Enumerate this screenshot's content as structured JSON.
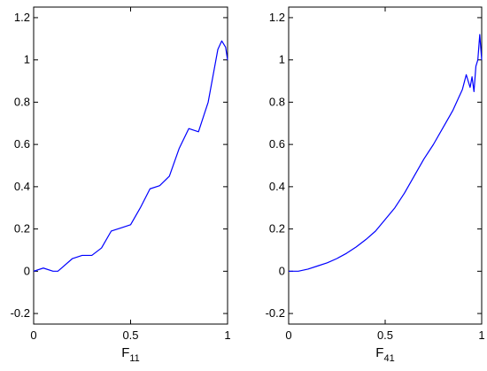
{
  "chart_data": [
    {
      "type": "line",
      "xlabel": "F",
      "xlabel_sub": "11",
      "color": "#0000ff",
      "x": [
        0,
        0.05,
        0.1,
        0.125,
        0.15,
        0.2,
        0.25,
        0.3,
        0.35,
        0.4,
        0.45,
        0.5,
        0.55,
        0.6,
        0.65,
        0.7,
        0.75,
        0.8,
        0.85,
        0.9,
        0.95,
        0.97,
        0.99,
        1.0
      ],
      "values": [
        0,
        0.015,
        0.0,
        0.0,
        0.02,
        0.06,
        0.075,
        0.075,
        0.11,
        0.19,
        0.205,
        0.22,
        0.3,
        0.39,
        0.405,
        0.45,
        0.58,
        0.675,
        0.66,
        0.8,
        1.05,
        1.09,
        1.06,
        1.0
      ],
      "xlim": [
        0,
        1
      ],
      "ylim": [
        -0.25,
        1.25
      ],
      "xticks": [
        0,
        0.5,
        1
      ],
      "yticks": [
        -0.2,
        0,
        0.2,
        0.4,
        0.6,
        0.8,
        1,
        1.2
      ]
    },
    {
      "type": "line",
      "xlabel": "F",
      "xlabel_sub": "41",
      "color": "#0000ff",
      "x": [
        0,
        0.05,
        0.1,
        0.15,
        0.2,
        0.25,
        0.3,
        0.35,
        0.4,
        0.45,
        0.5,
        0.55,
        0.6,
        0.65,
        0.7,
        0.75,
        0.8,
        0.85,
        0.88,
        0.9,
        0.92,
        0.94,
        0.95,
        0.96,
        0.97,
        0.98,
        0.99,
        1.0
      ],
      "values": [
        0,
        0.0,
        0.01,
        0.025,
        0.04,
        0.06,
        0.085,
        0.115,
        0.15,
        0.19,
        0.245,
        0.3,
        0.37,
        0.45,
        0.53,
        0.6,
        0.68,
        0.76,
        0.82,
        0.86,
        0.93,
        0.87,
        0.92,
        0.85,
        0.97,
        1.0,
        1.12,
        1.0
      ],
      "xlim": [
        0,
        1
      ],
      "ylim": [
        -0.25,
        1.25
      ],
      "xticks": [
        0,
        0.5,
        1
      ],
      "yticks": [
        -0.2,
        0,
        0.2,
        0.4,
        0.6,
        0.8,
        1,
        1.2
      ]
    }
  ]
}
